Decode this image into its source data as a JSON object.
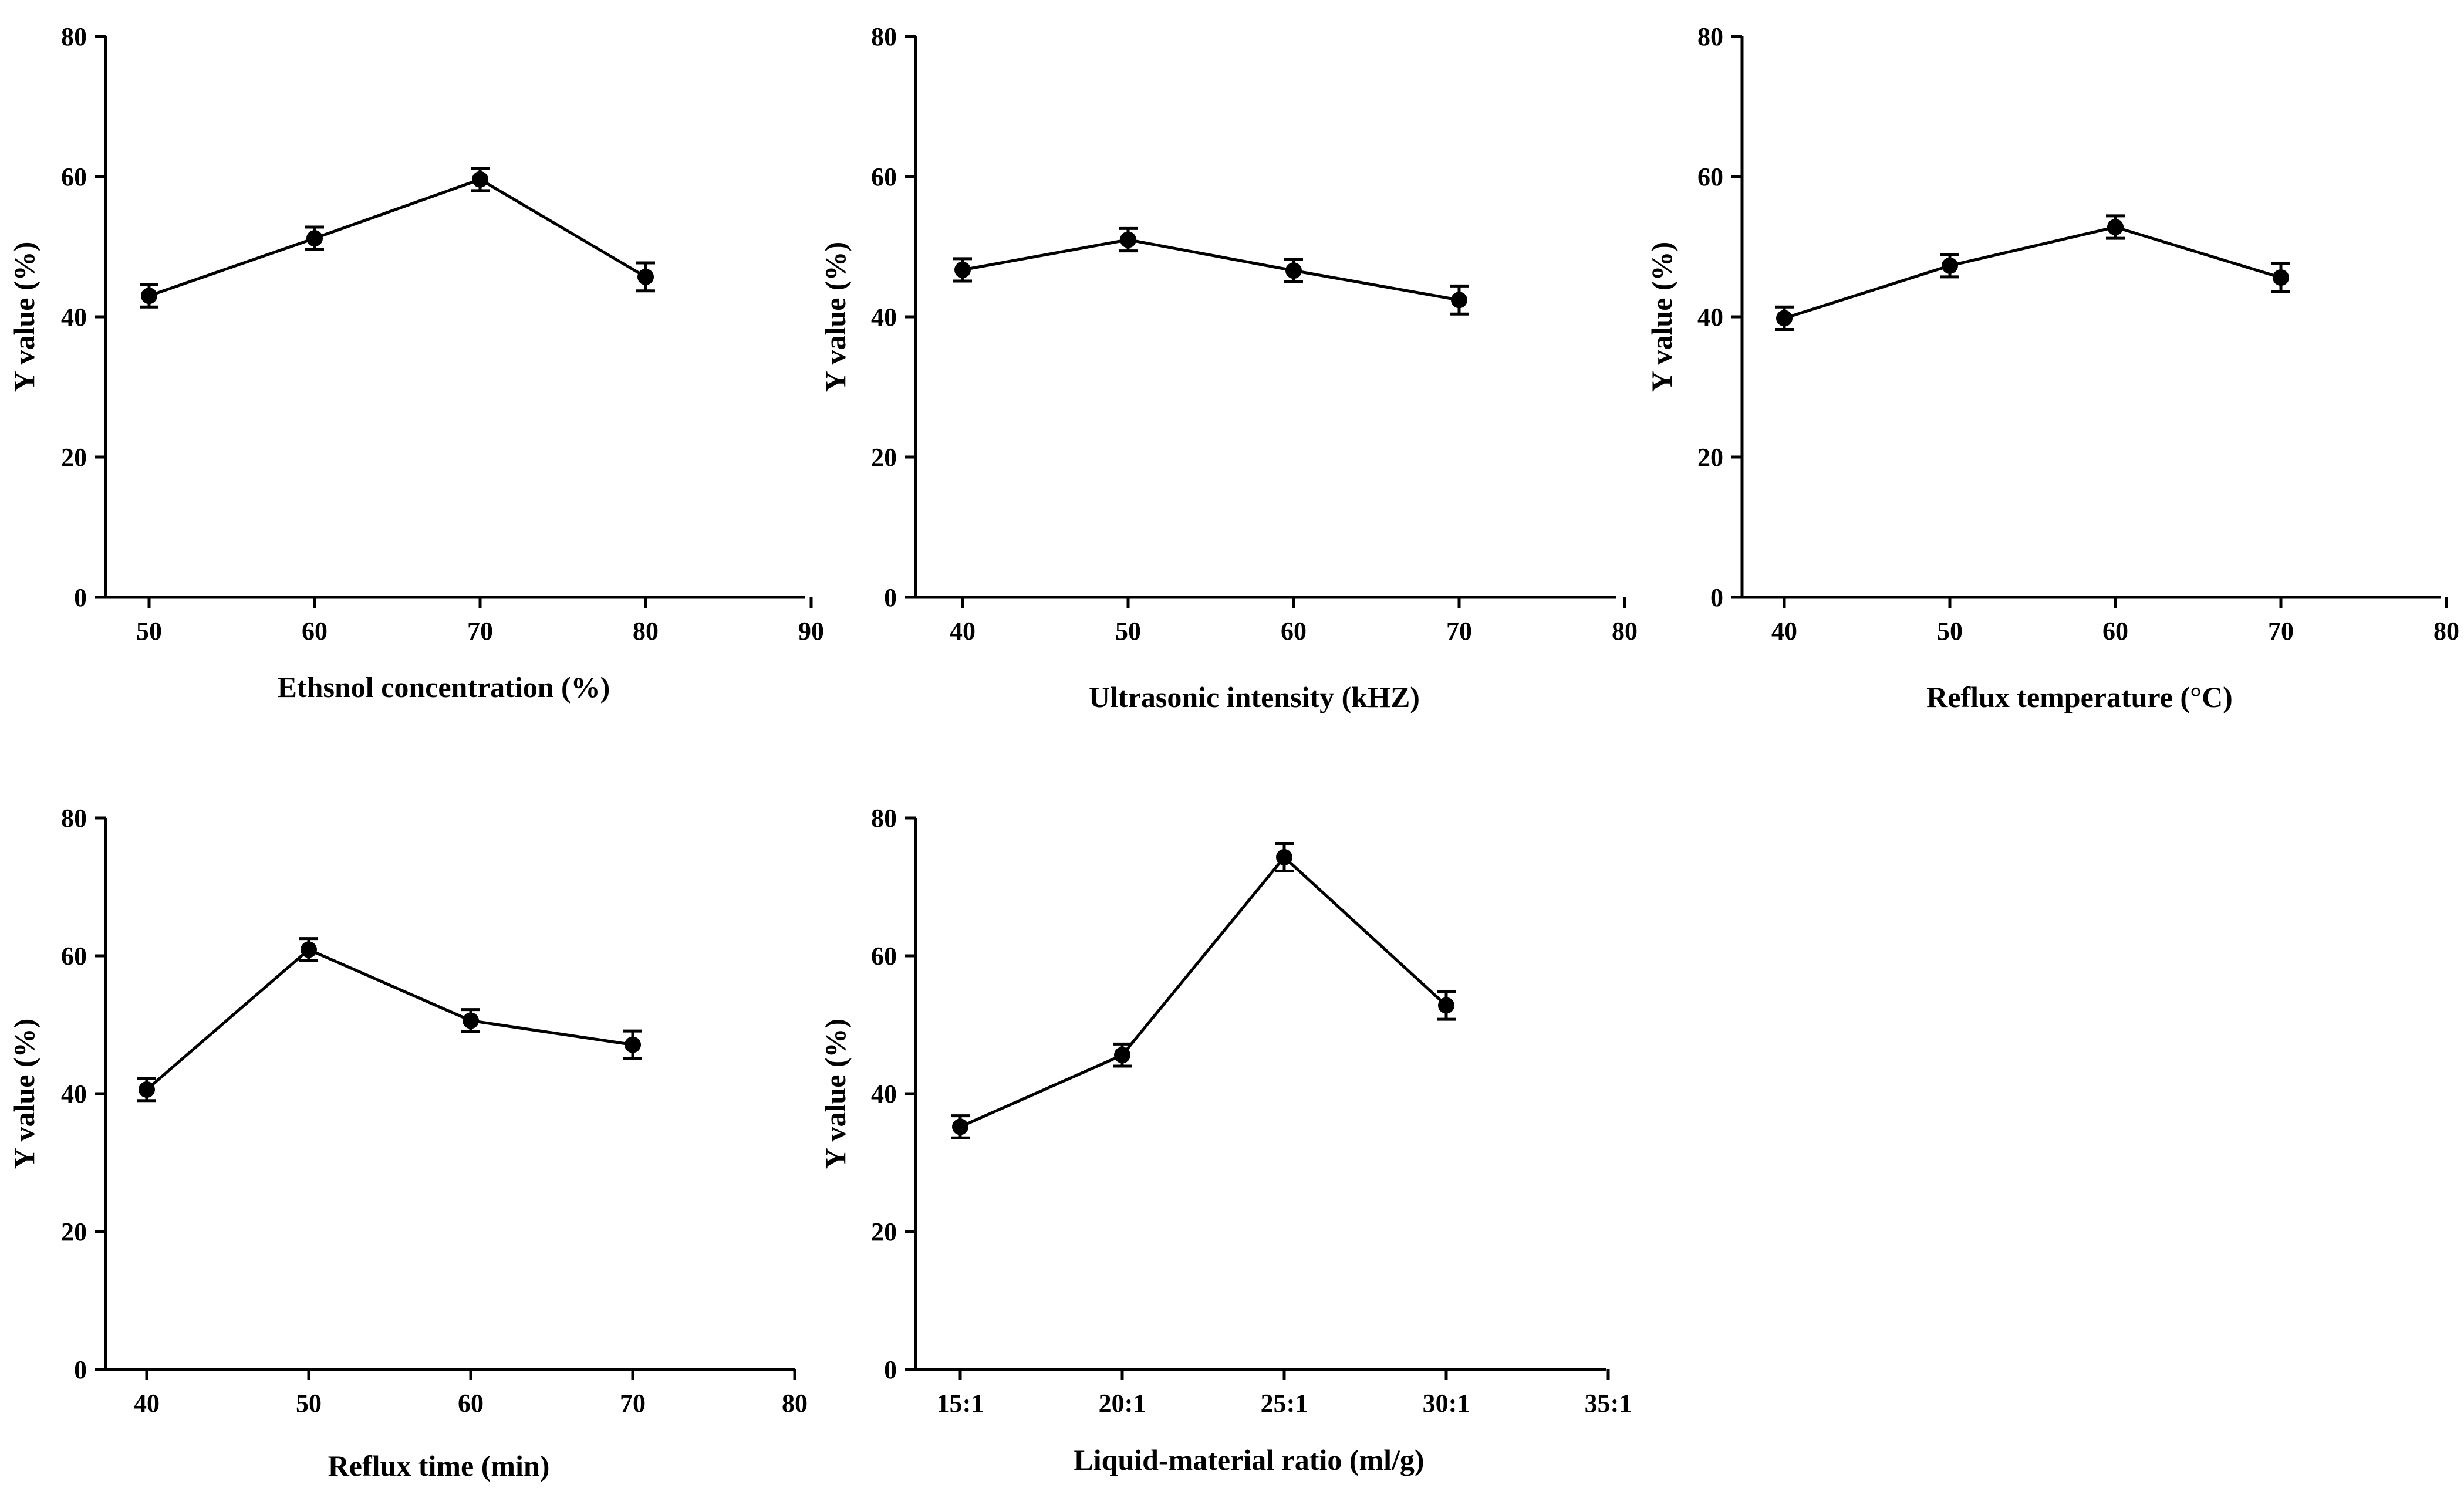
{
  "chart_data": [
    {
      "type": "line",
      "id": "ethanol",
      "xlabel": "Ethsnol concentration (%)",
      "ylabel": "Y value (%)",
      "x_tick_labels": [
        "50",
        "60",
        "70",
        "80",
        "90"
      ],
      "y_tick_labels": [
        "0",
        "20",
        "40",
        "60",
        "80"
      ],
      "ylim": [
        0,
        80
      ],
      "categories": [
        "50",
        "60",
        "70",
        "80"
      ],
      "values": [
        43.0,
        51.2,
        59.6,
        45.7
      ],
      "errors": [
        1.6,
        1.6,
        1.6,
        2.0
      ]
    },
    {
      "type": "line",
      "id": "ultrasonic",
      "xlabel": "Ultrasonic intensity (kHZ)",
      "ylabel": "Y value (%)",
      "x_tick_labels": [
        "40",
        "50",
        "60",
        "70",
        "80"
      ],
      "y_tick_labels": [
        "0",
        "20",
        "40",
        "60",
        "80"
      ],
      "ylim": [
        0,
        80
      ],
      "categories": [
        "40",
        "50",
        "60",
        "70"
      ],
      "values": [
        46.7,
        51.0,
        46.6,
        42.4
      ],
      "errors": [
        1.6,
        1.6,
        1.6,
        2.0
      ]
    },
    {
      "type": "line",
      "id": "reflux-temp",
      "xlabel": "Reflux temperature (°C)",
      "ylabel": "Y value (%)",
      "x_tick_labels": [
        "40",
        "50",
        "60",
        "70",
        "80"
      ],
      "y_tick_labels": [
        "0",
        "20",
        "40",
        "60",
        "80"
      ],
      "ylim": [
        0,
        80
      ],
      "categories": [
        "40",
        "50",
        "60",
        "70"
      ],
      "values": [
        39.8,
        47.3,
        52.8,
        45.6
      ],
      "errors": [
        1.6,
        1.6,
        1.6,
        2.0
      ]
    },
    {
      "type": "line",
      "id": "reflux-time",
      "xlabel": "Reflux time (min)",
      "ylabel": "Y value (%)",
      "x_tick_labels": [
        "40",
        "50",
        "60",
        "70",
        "80"
      ],
      "y_tick_labels": [
        "0",
        "20",
        "40",
        "60",
        "80"
      ],
      "ylim": [
        0,
        80
      ],
      "categories": [
        "40",
        "50",
        "60",
        "70"
      ],
      "values": [
        40.6,
        60.9,
        50.6,
        47.1
      ],
      "errors": [
        1.6,
        1.6,
        1.6,
        2.0
      ]
    },
    {
      "type": "line",
      "id": "liquid-material",
      "xlabel": "Liquid-material ratio (ml/g)",
      "ylabel": "Y value (%)",
      "x_tick_labels": [
        "15:1",
        "20:1",
        "25:1",
        "30:1",
        "35:1"
      ],
      "y_tick_labels": [
        "0",
        "20",
        "40",
        "60",
        "80"
      ],
      "ylim": [
        0,
        80
      ],
      "categories": [
        "15:1",
        "20:1",
        "25:1",
        "30:1"
      ],
      "values": [
        35.2,
        45.6,
        74.3,
        52.8
      ],
      "errors": [
        1.6,
        1.6,
        2.0,
        2.0
      ]
    }
  ]
}
